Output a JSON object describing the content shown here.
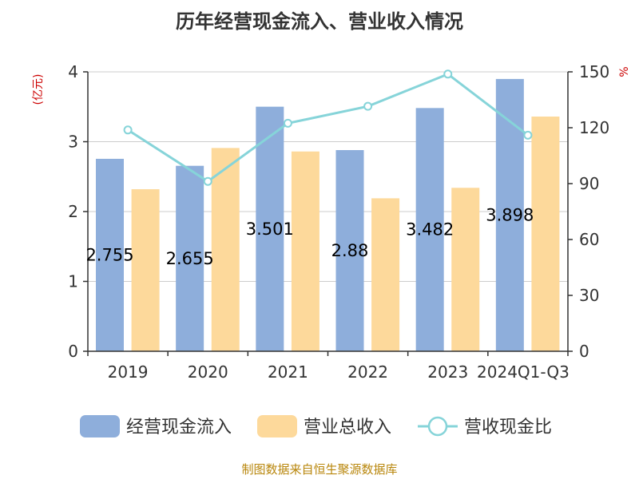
{
  "chart_data": {
    "type": "bar",
    "title": "历年经营现金流入、营业收入情况",
    "categories": [
      "2019",
      "2020",
      "2021",
      "2022",
      "2023",
      "2024Q1-Q3"
    ],
    "y_left_unit": "(亿元)",
    "y_right_unit": "%",
    "ylim_left": [
      0,
      4
    ],
    "ylim_right": [
      0,
      150
    ],
    "left_ticks": [
      0,
      1,
      2,
      3,
      4
    ],
    "right_ticks": [
      0,
      30,
      60,
      90,
      120,
      150
    ],
    "grid": true,
    "legend_position": "bottom",
    "series": [
      {
        "name": "经营现金流入",
        "kind": "bar",
        "axis": "left",
        "color": "#8eaedb",
        "values": [
          2.755,
          2.655,
          3.501,
          2.88,
          3.482,
          3.898
        ],
        "labels": [
          "2.755",
          "2.655",
          "3.501",
          "2.88",
          "3.482",
          "3.898"
        ]
      },
      {
        "name": "营业总收入",
        "kind": "bar",
        "axis": "left",
        "color": "#fdd99b",
        "values": [
          2.32,
          2.91,
          2.86,
          2.19,
          2.34,
          3.36
        ]
      },
      {
        "name": "营收现金比",
        "kind": "line",
        "axis": "right",
        "color": "#86d4d9",
        "values": [
          118.8,
          91.2,
          122.4,
          131.5,
          148.8,
          116.0
        ]
      }
    ],
    "source": "制图数据来自恒生聚源数据库"
  }
}
